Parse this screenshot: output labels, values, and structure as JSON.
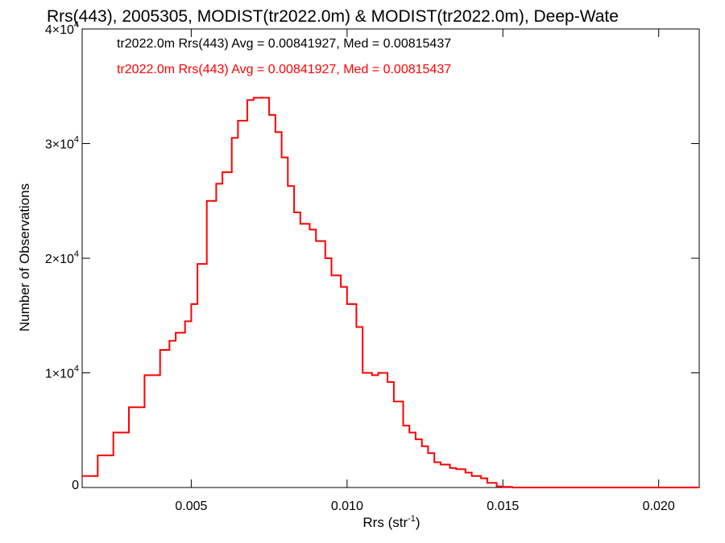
{
  "chart_data": {
    "type": "line",
    "title": "Rrs(443), 2005305, MODIST(tr2022.0m) & MODIST(tr2022.0m), Deep-Wate",
    "xlabel": "Rrs (str",
    "xlabel_sup": "-1",
    "xlabel_end": ")",
    "ylabel": "Number of Observations",
    "xlim": [
      0.0015,
      0.0213
    ],
    "ylim": [
      0,
      40000
    ],
    "x_ticks": [
      {
        "value": 0.005,
        "label": "0.005"
      },
      {
        "value": 0.01,
        "label": "0.010"
      },
      {
        "value": 0.015,
        "label": "0.015"
      },
      {
        "value": 0.02,
        "label": "0.020"
      }
    ],
    "y_ticks": [
      {
        "value": 0,
        "base": "0",
        "exp": ""
      },
      {
        "value": 10000,
        "base": "1×10",
        "exp": "4"
      },
      {
        "value": 20000,
        "base": "2×10",
        "exp": "4"
      },
      {
        "value": 30000,
        "base": "3×10",
        "exp": "4"
      },
      {
        "value": 40000,
        "base": "4×10",
        "exp": "4"
      }
    ],
    "annotations": [
      {
        "text": "tr2022.0m Rrs(443) Avg = 0.00841927, Med = 0.00815437",
        "color": "#000000"
      },
      {
        "text": "tr2022.0m Rrs(443) Avg = 0.00841927, Med = 0.00815437",
        "color": "#ff0000"
      }
    ],
    "series": [
      {
        "color": "#ff0000",
        "style": "step",
        "x": [
          0.0015,
          0.002,
          0.0025,
          0.003,
          0.0035,
          0.004,
          0.0043,
          0.0045,
          0.0048,
          0.005,
          0.0052,
          0.0055,
          0.0058,
          0.006,
          0.0063,
          0.0065,
          0.0068,
          0.007,
          0.0073,
          0.0075,
          0.0077,
          0.0079,
          0.0081,
          0.0083,
          0.0085,
          0.0088,
          0.009,
          0.0093,
          0.0095,
          0.0098,
          0.01,
          0.0103,
          0.0105,
          0.0108,
          0.011,
          0.0113,
          0.0115,
          0.0118,
          0.012,
          0.0122,
          0.0124,
          0.0126,
          0.0128,
          0.013,
          0.0133,
          0.0135,
          0.0138,
          0.014,
          0.0143,
          0.0145,
          0.0148,
          0.015,
          0.0153,
          0.0155,
          0.0158,
          0.016,
          0.0163,
          0.0165,
          0.0168,
          0.017,
          0.0173,
          0.0175,
          0.0178,
          0.018,
          0.0183,
          0.0185,
          0.019,
          0.02,
          0.0213
        ],
        "y": [
          1000,
          2800,
          4800,
          7000,
          9800,
          12000,
          12800,
          13500,
          14500,
          16000,
          19500,
          25000,
          26500,
          27500,
          30500,
          32000,
          33800,
          34000,
          34000,
          32500,
          31000,
          28800,
          26300,
          24000,
          23000,
          22500,
          21500,
          20000,
          18500,
          17500,
          16000,
          14000,
          10000,
          9800,
          10000,
          9200,
          7500,
          5400,
          4800,
          4200,
          3600,
          3000,
          2200,
          2000,
          1700,
          1600,
          1300,
          1000,
          800,
          400,
          100,
          50,
          0,
          0,
          0,
          0,
          0,
          0,
          0,
          0,
          0,
          0,
          0,
          0,
          0,
          0,
          0,
          0,
          0
        ]
      }
    ]
  }
}
